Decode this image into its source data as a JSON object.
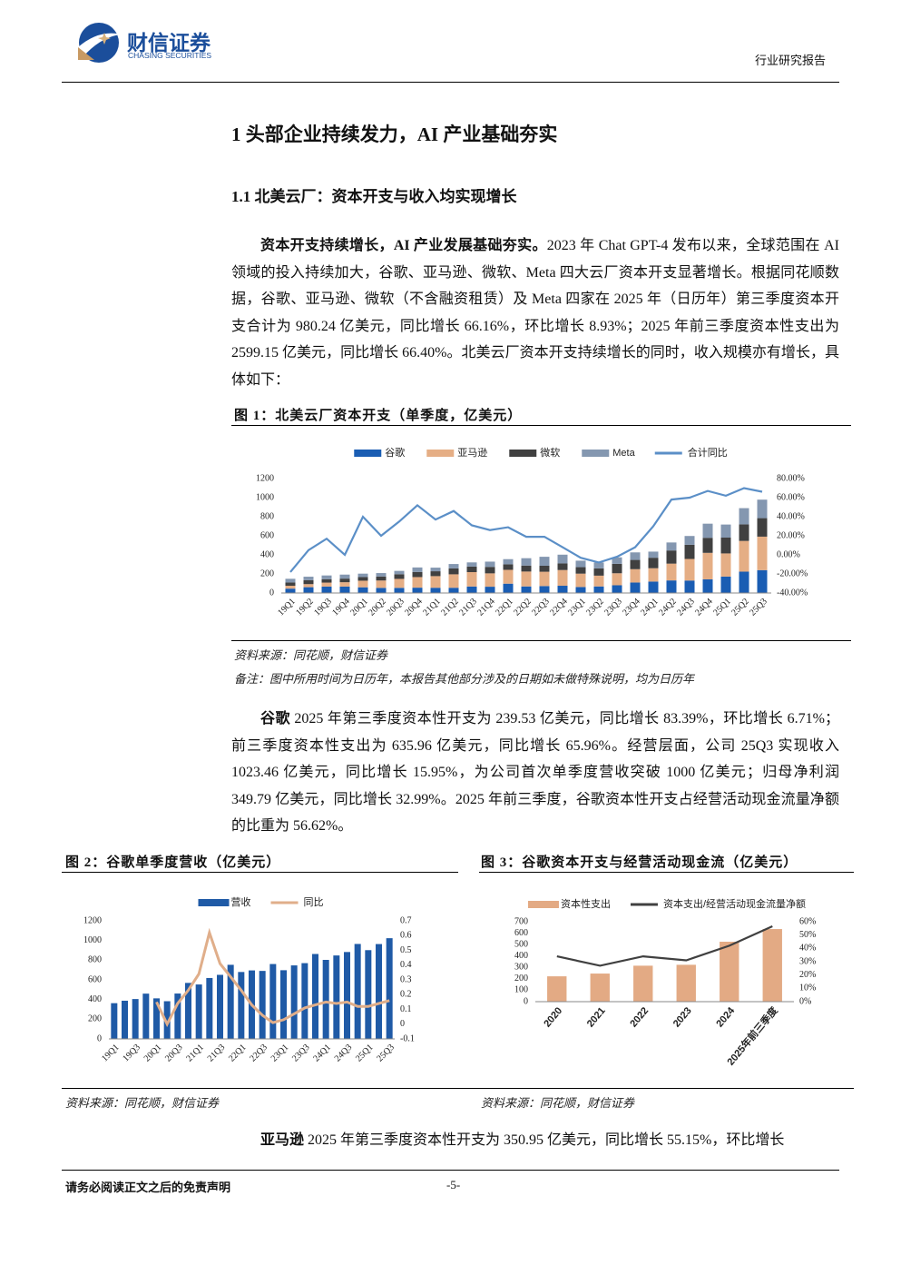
{
  "header": {
    "company": "财信证券",
    "company_en": "CHASING SECURITIES",
    "report_type": "行业研究报告"
  },
  "headings": {
    "h1": "1 头部企业持续发力，AI 产业基础夯实",
    "h2": "1.1 北美云厂：资本开支与收入均实现增长"
  },
  "paragraphs": [
    {
      "lead": "资本开支持续增长，AI 产业发展基础夯实。",
      "text": "2023 年 Chat GPT-4 发布以来，全球范围在 AI 领域的投入持续加大，谷歌、亚马逊、微软、Meta 四大云厂资本开支显著增长。根据同花顺数据，谷歌、亚马逊、微软（不含融资租赁）及 Meta 四家在 2025 年（日历年）第三季度资本开支合计为 980.24 亿美元，同比增长 66.16%，环比增长 8.93%；2025 年前三季度资本性支出为 2599.15 亿美元，同比增长 66.40%。北美云厂资本开支持续增长的同时，收入规模亦有增长，具体如下："
    },
    {
      "lead": "谷歌",
      "text": " 2025 年第三季度资本性开支为 239.53 亿美元，同比增长 83.39%，环比增长 6.71%；前三季度资本性支出为 635.96 亿美元，同比增长 65.96%。经营层面，公司 25Q3 实现收入 1023.46 亿美元，同比增长 15.95%，为公司首次单季度营收突破 1000 亿美元；归母净利润 349.79 亿美元，同比增长 32.99%。2025 年前三季度，谷歌资本性开支占经营活动现金流量净额的比重为 56.62%。"
    },
    {
      "lead": "亚马逊",
      "text": " 2025 年第三季度资本性开支为 350.95 亿美元，同比增长 55.15%，环比增长"
    }
  ],
  "figures": [
    {
      "title": "图 1：北美云厂资本开支（单季度，亿美元）",
      "source": "资料来源：同花顺，财信证券",
      "note": "备注：图中所用时间为日历年，本报告其他部分涉及的日期如未做特殊说明，均为日历年"
    },
    {
      "title": "图 2：谷歌单季度营收（亿美元）",
      "source": "资料来源：同花顺，财信证券"
    },
    {
      "title": "图 3：谷歌资本开支与经营活动现金流（亿美元）",
      "source": "资料来源：同花顺，财信证券"
    }
  ],
  "footer": {
    "disclaimer": "请务必阅读正文之后的免责声明",
    "page": "-5-"
  },
  "chart_data": [
    {
      "type": "bar",
      "stacked": true,
      "grid": false,
      "categories": [
        "19Q1",
        "19Q2",
        "19Q3",
        "19Q4",
        "20Q1",
        "20Q2",
        "20Q3",
        "20Q4",
        "21Q1",
        "21Q2",
        "21Q3",
        "21Q4",
        "22Q1",
        "22Q2",
        "22Q3",
        "22Q4",
        "23Q1",
        "23Q2",
        "23Q3",
        "23Q4",
        "24Q1",
        "24Q2",
        "24Q3",
        "24Q4",
        "25Q1",
        "25Q2",
        "25Q3"
      ],
      "series": [
        {
          "name": "谷歌",
          "color": "#1a5db3",
          "values": [
            46,
            61,
            67,
            67,
            60,
            54,
            54,
            56,
            55,
            55,
            68,
            66,
            98,
            69,
            73,
            76,
            63,
            69,
            81,
            110,
            120,
            132,
            131,
            143,
            172,
            224,
            240
          ]
        },
        {
          "name": "亚马逊",
          "color": "#e5ae85",
          "values": [
            30,
            32,
            42,
            46,
            69,
            77,
            94,
            111,
            122,
            141,
            151,
            140,
            145,
            156,
            150,
            165,
            140,
            113,
            126,
            140,
            140,
            176,
            226,
            278,
            243,
            322,
            351
          ]
        },
        {
          "name": "微软",
          "color": "#404040",
          "values": [
            34,
            42,
            36,
            38,
            38,
            42,
            49,
            54,
            51,
            62,
            58,
            68,
            58,
            63,
            63,
            69,
            68,
            76,
            99,
            97,
            110,
            138,
            149,
            158,
            166,
            174,
            194
          ]
        },
        {
          "name": "Meta",
          "color": "#8497b0",
          "values": [
            39,
            36,
            39,
            42,
            36,
            36,
            35,
            47,
            38,
            46,
            44,
            55,
            54,
            77,
            94,
            92,
            68,
            62,
            68,
            79,
            64,
            84,
            92,
            148,
            137,
            170,
            194
          ]
        },
        {
          "name": "合计同比",
          "color": "#5b8fc7",
          "type": "line",
          "axis": "y2",
          "values": [
            -18,
            5,
            17,
            0,
            40,
            20,
            35,
            52,
            37,
            46,
            31,
            26,
            29,
            19,
            19,
            8,
            -3,
            -8,
            -2,
            8,
            30,
            58,
            60,
            67,
            62,
            70,
            66.16
          ]
        }
      ],
      "ylim": [
        0,
        1200
      ],
      "yticks": [
        0,
        200,
        400,
        600,
        800,
        1000,
        1200
      ],
      "y2lim": [
        -40,
        80
      ],
      "y2ticks": [
        {
          "value": -40,
          "label": "-40.00%"
        },
        {
          "value": -20,
          "label": "-20.00%"
        },
        {
          "value": 0,
          "label": "0.00%"
        },
        {
          "value": 20,
          "label": "20.00%"
        },
        {
          "value": 40,
          "label": "40.00%"
        },
        {
          "value": 60,
          "label": "60.00%"
        },
        {
          "value": 80,
          "label": "80.00%"
        }
      ]
    },
    {
      "type": "bar",
      "stacked": false,
      "grid": false,
      "categories": [
        "19Q1",
        null,
        "19Q3",
        null,
        "20Q1",
        null,
        "20Q3",
        null,
        "21Q1",
        null,
        "21Q3",
        null,
        "22Q1",
        null,
        "22Q3",
        null,
        "23Q1",
        null,
        "23Q3",
        null,
        "24Q1",
        null,
        "24Q3",
        null,
        "25Q1",
        null,
        "25Q3"
      ],
      "series": [
        {
          "name": "营收",
          "color": "#1f5aa6",
          "values": [
            363,
            388,
            405,
            460,
            412,
            383,
            461,
            569,
            553,
            619,
            651,
            753,
            680,
            696,
            691,
            761,
            698,
            747,
            770,
            863,
            803,
            848,
            883,
            965,
            902,
            964,
            1023.46
          ]
        },
        {
          "name": "同比",
          "color": "#e0ae8a",
          "type": "line",
          "axis": "y2",
          "values": [
            null,
            null,
            null,
            null,
            0.15,
            0.0,
            0.14,
            0.23,
            0.34,
            0.62,
            0.41,
            0.32,
            0.23,
            0.13,
            0.06,
            0.01,
            0.03,
            0.07,
            0.11,
            0.13,
            0.15,
            0.14,
            0.15,
            0.12,
            0.12,
            0.14,
            0.16
          ]
        }
      ],
      "ylim": [
        0,
        1200
      ],
      "yticks": [
        0,
        200,
        400,
        600,
        800,
        1000,
        1200
      ],
      "y2lim": [
        -0.1,
        0.7
      ],
      "y2ticks": [
        -0.1,
        0,
        0.1,
        0.2,
        0.3,
        0.4,
        0.5,
        0.6,
        0.7
      ]
    },
    {
      "type": "bar",
      "stacked": false,
      "grid": false,
      "categories": [
        "2020",
        "2021",
        "2022",
        "2023",
        "2024",
        "2025年前三季度"
      ],
      "series": [
        {
          "name": "资本性支出",
          "color": "#e3aa84",
          "values": [
            222,
            246,
            315,
            323,
            525,
            635.96
          ]
        },
        {
          "name": "资本支出/经营活动现金流量净额",
          "color": "#404040",
          "type": "line",
          "axis": "y2",
          "values": [
            34,
            27,
            34,
            31,
            42,
            56.62
          ]
        }
      ],
      "ylim": [
        0,
        700
      ],
      "yticks": [
        0,
        100,
        200,
        300,
        400,
        500,
        600,
        700
      ],
      "y2lim": [
        0,
        60
      ],
      "y2ticks": [
        {
          "value": 0,
          "label": "0%"
        },
        {
          "value": 10,
          "label": "10%"
        },
        {
          "value": 20,
          "label": "20%"
        },
        {
          "value": 30,
          "label": "30%"
        },
        {
          "value": 40,
          "label": "40%"
        },
        {
          "value": 50,
          "label": "50%"
        },
        {
          "value": 60,
          "label": "60%"
        }
      ]
    }
  ]
}
